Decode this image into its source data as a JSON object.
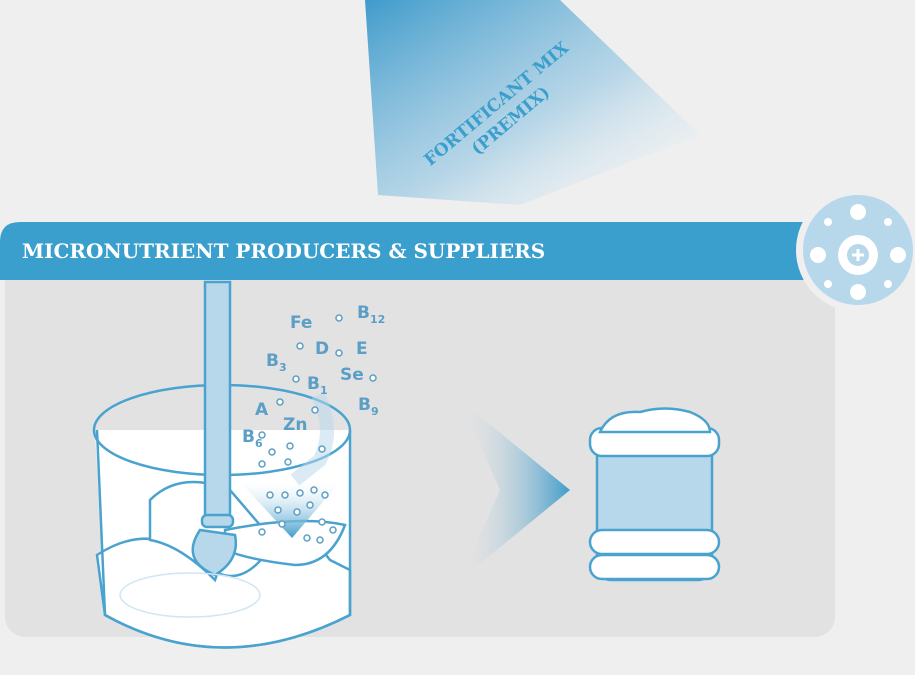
{
  "banner": {
    "title": "MICRONUTRIENT PRODUCERS & SUPPLIERS"
  },
  "arrow_label": {
    "lines": [
      "FORTIFICANT MIX",
      "(PREMIX)"
    ]
  },
  "nutrients": [
    {
      "symbol": "Fe"
    },
    {
      "symbol": "B",
      "subscript": "12"
    },
    {
      "symbol": "D"
    },
    {
      "symbol": "E"
    },
    {
      "symbol": "B",
      "subscript": "3"
    },
    {
      "symbol": "B",
      "subscript": "1"
    },
    {
      "symbol": "Se"
    },
    {
      "symbol": "B",
      "subscript": "9"
    },
    {
      "symbol": "A"
    },
    {
      "symbol": "Zn"
    },
    {
      "symbol": "B",
      "subscript": "6"
    }
  ]
}
